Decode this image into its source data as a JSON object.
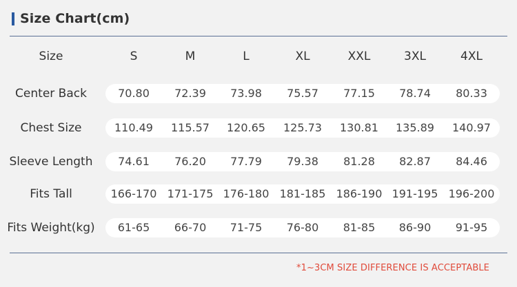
{
  "title": "Size Chart(cm)",
  "header": {
    "label": "Size",
    "sizes": [
      "S",
      "M",
      "L",
      "XL",
      "XXL",
      "3XL",
      "4XL"
    ]
  },
  "rows": [
    {
      "label": "Center Back",
      "values": [
        "70.80",
        "72.39",
        "73.98",
        "75.57",
        "77.15",
        "78.74",
        "80.33"
      ]
    },
    {
      "label": "Chest Size",
      "values": [
        "110.49",
        "115.57",
        "120.65",
        "125.73",
        "130.81",
        "135.89",
        "140.97"
      ]
    },
    {
      "label": "Sleeve Length",
      "values": [
        "74.61",
        "76.20",
        "77.79",
        "79.38",
        "81.28",
        "82.87",
        "84.46"
      ]
    },
    {
      "label": "Fits Tall",
      "values": [
        "166-170",
        "171-175",
        "176-180",
        "181-185",
        "186-190",
        "191-195",
        "196-200"
      ]
    },
    {
      "label": "Fits Weight(kg)",
      "values": [
        "61-65",
        "66-70",
        "71-75",
        "76-80",
        "81-85",
        "86-90",
        "91-95"
      ]
    }
  ],
  "note": "*1~3CM SIZE DIFFERENCE IS ACCEPTABLE",
  "colors": {
    "accent": "#2a5aa0",
    "note": "#e04a3a",
    "background": "#f2f2f2"
  }
}
